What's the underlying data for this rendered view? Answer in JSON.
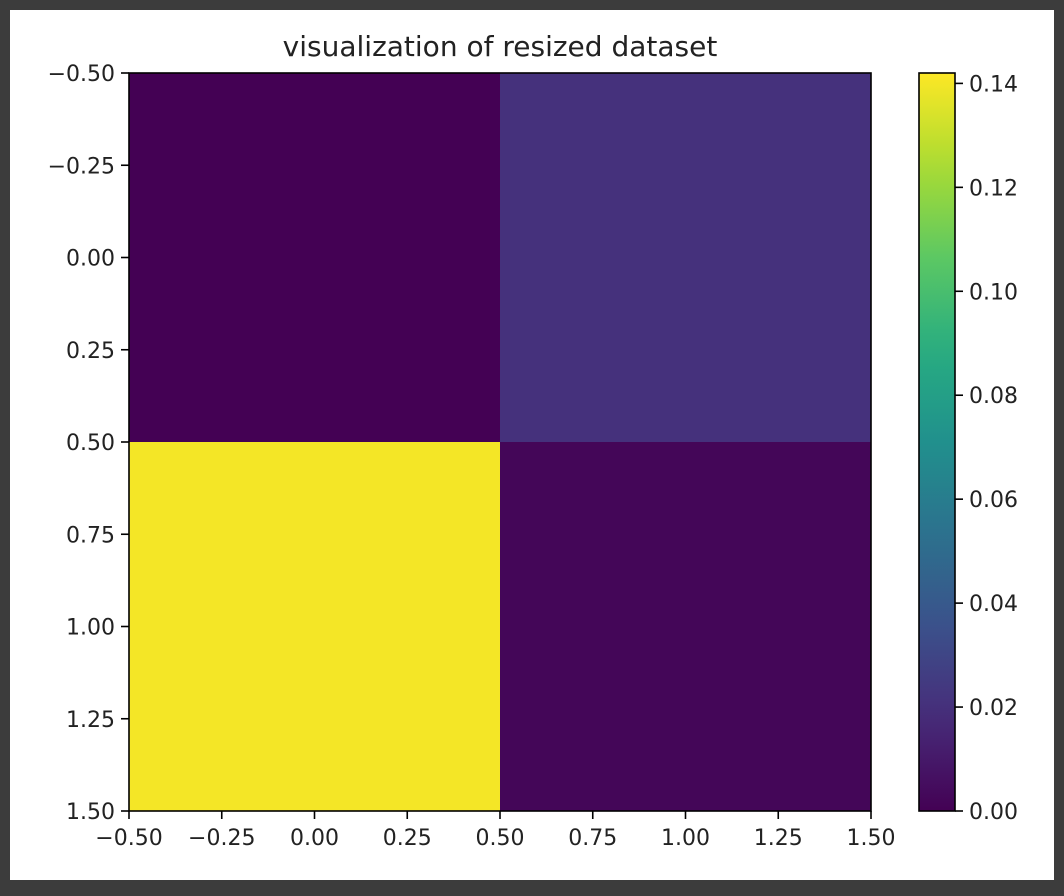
{
  "chart_data": {
    "type": "heatmap",
    "title": "visualization of resized dataset",
    "xlabel": "",
    "ylabel": "",
    "xlim": [
      -0.5,
      1.5
    ],
    "ylim": [
      1.5,
      -0.5
    ],
    "x_ticks": [
      "−0.50",
      "−0.25",
      "0.00",
      "0.25",
      "0.50",
      "0.75",
      "1.00",
      "1.25",
      "1.50"
    ],
    "y_ticks": [
      "−0.50",
      "−0.25",
      "0.00",
      "0.25",
      "0.50",
      "0.75",
      "1.00",
      "1.25",
      "1.50"
    ],
    "x_tick_values": [
      -0.5,
      -0.25,
      0.0,
      0.25,
      0.5,
      0.75,
      1.0,
      1.25,
      1.5
    ],
    "y_tick_values": [
      -0.5,
      -0.25,
      0.0,
      0.25,
      0.5,
      0.75,
      1.0,
      1.25,
      1.5
    ],
    "matrix": [
      [
        0.0,
        0.02
      ],
      [
        0.14,
        0.002
      ]
    ],
    "colormap": "viridis",
    "colorbar": {
      "vmin": 0.0,
      "vmax": 0.142,
      "ticks": [
        "0.00",
        "0.02",
        "0.04",
        "0.06",
        "0.08",
        "0.10",
        "0.12",
        "0.14"
      ],
      "tick_values": [
        0.0,
        0.02,
        0.04,
        0.06,
        0.08,
        0.1,
        0.12,
        0.14
      ]
    },
    "grid": false,
    "legend": "none"
  }
}
